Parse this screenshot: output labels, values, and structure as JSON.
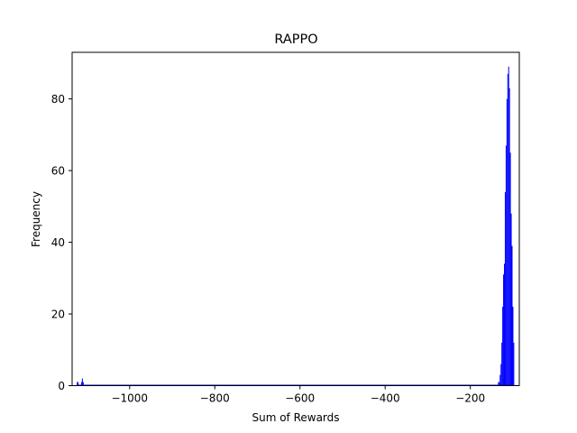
{
  "chart_data": {
    "type": "bar",
    "title": "RAPPO",
    "xlabel": "Sum of Rewards",
    "ylabel": "Frequency",
    "xlim": [
      -1135,
      -85
    ],
    "ylim": [
      0,
      93
    ],
    "xticks": [
      -1000,
      -800,
      -600,
      -400,
      -200
    ],
    "yticks": [
      0,
      20,
      40,
      60,
      80
    ],
    "xtick_labels": [
      "−1000",
      "−800",
      "−600",
      "−400",
      "−200"
    ],
    "ytick_labels": [
      "0",
      "20",
      "40",
      "60",
      "80"
    ],
    "grid": false,
    "bar_color": "#0000ff",
    "bin_width": 2,
    "series": [
      {
        "x": [
          -1123,
          -1121,
          -1113,
          -1111,
          -1109,
          -134,
          -132,
          -130,
          -128,
          -126,
          -124,
          -122,
          -120,
          -118,
          -116,
          -114,
          -112,
          -110,
          -108,
          -106,
          -104,
          -102,
          -100,
          -98
        ],
        "values": [
          1,
          1,
          1,
          2,
          1,
          1,
          1,
          3,
          6,
          12,
          22,
          31,
          34,
          54,
          67,
          80,
          87,
          89,
          83,
          65,
          48,
          39,
          22,
          12
        ]
      }
    ]
  }
}
